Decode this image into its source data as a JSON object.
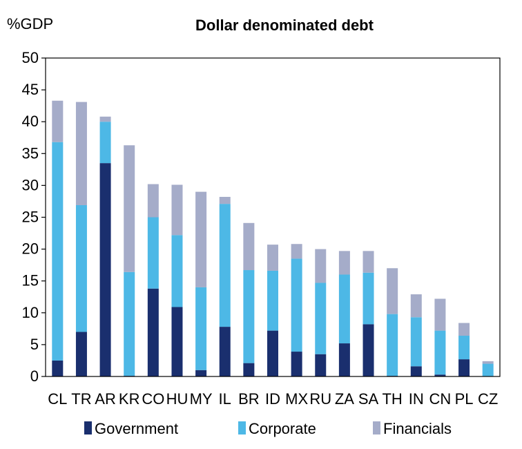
{
  "chart_data": {
    "type": "bar",
    "stacked": true,
    "title": "Dollar denominated debt",
    "ylabel": "%GDP",
    "xlabel": "",
    "ylim": [
      0,
      50
    ],
    "yticks": [
      0,
      5,
      10,
      15,
      20,
      25,
      30,
      35,
      40,
      45,
      50
    ],
    "grid": false,
    "legend": "bottom",
    "categories": [
      "CL",
      "TR",
      "AR",
      "KR",
      "CO",
      "HU",
      "MY",
      "IL",
      "BR",
      "ID",
      "MX",
      "RU",
      "ZA",
      "SA",
      "TH",
      "IN",
      "CN",
      "PL",
      "CZ"
    ],
    "series": [
      {
        "name": "Government",
        "color": "#1a2f6e",
        "values": [
          2.5,
          7.0,
          33.5,
          0.1,
          13.8,
          10.9,
          1.0,
          7.8,
          2.1,
          7.2,
          3.9,
          3.5,
          5.2,
          8.2,
          0.1,
          1.6,
          0.3,
          2.7,
          0.0
        ]
      },
      {
        "name": "Corporate",
        "color": "#4db8e6",
        "values": [
          34.3,
          19.9,
          6.5,
          16.3,
          11.2,
          11.3,
          13.0,
          19.3,
          14.6,
          9.4,
          14.6,
          11.2,
          10.8,
          8.1,
          9.7,
          7.7,
          6.9,
          3.7,
          2.0
        ]
      },
      {
        "name": "Financials",
        "color": "#a5acc9",
        "values": [
          6.5,
          16.2,
          0.8,
          19.9,
          5.2,
          7.9,
          15.0,
          1.1,
          7.4,
          4.1,
          2.3,
          5.3,
          3.7,
          3.4,
          7.2,
          3.6,
          5.0,
          2.0,
          0.4
        ]
      }
    ]
  }
}
